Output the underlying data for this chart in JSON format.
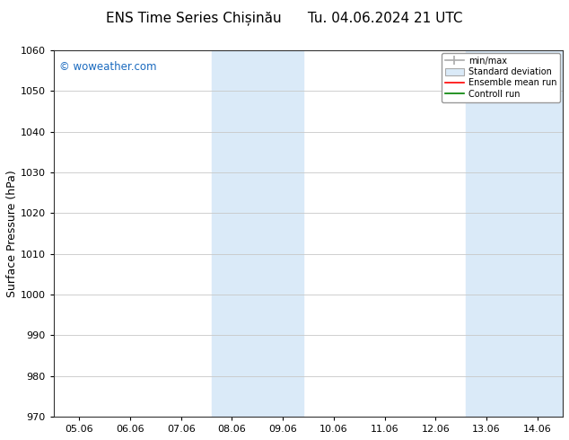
{
  "title": "ENS Time Series Chișinău      Tu. 04.06.2024 21 UTC",
  "ylabel": "Surface Pressure (hPa)",
  "xlabel": "",
  "ylim": [
    970,
    1060
  ],
  "yticks": [
    970,
    980,
    990,
    1000,
    1010,
    1020,
    1030,
    1040,
    1050,
    1060
  ],
  "xtick_labels": [
    "05.06",
    "06.06",
    "07.06",
    "08.06",
    "09.06",
    "10.06",
    "11.06",
    "12.06",
    "13.06",
    "14.06"
  ],
  "xtick_positions": [
    0,
    1,
    2,
    3,
    4,
    5,
    6,
    7,
    8,
    9
  ],
  "xmin": -0.5,
  "xmax": 9.5,
  "shade_bands": [
    {
      "xstart": 2.6,
      "xend": 4.4
    },
    {
      "xstart": 7.6,
      "xend": 9.5
    }
  ],
  "shade_color": "#daeaf8",
  "watermark_text": "© woweather.com",
  "watermark_color": "#1a6abf",
  "bg_color": "#ffffff",
  "plot_bg_color": "#ffffff",
  "grid_color": "#c8c8c8",
  "title_fontsize": 11,
  "axis_label_fontsize": 9,
  "tick_fontsize": 8,
  "legend_entries": [
    "min/max",
    "Standard deviation",
    "Ensemble mean run",
    "Controll run"
  ],
  "legend_colors": [
    "#aaaaaa",
    "#daeaf8",
    "#ff0000",
    "#008000"
  ]
}
